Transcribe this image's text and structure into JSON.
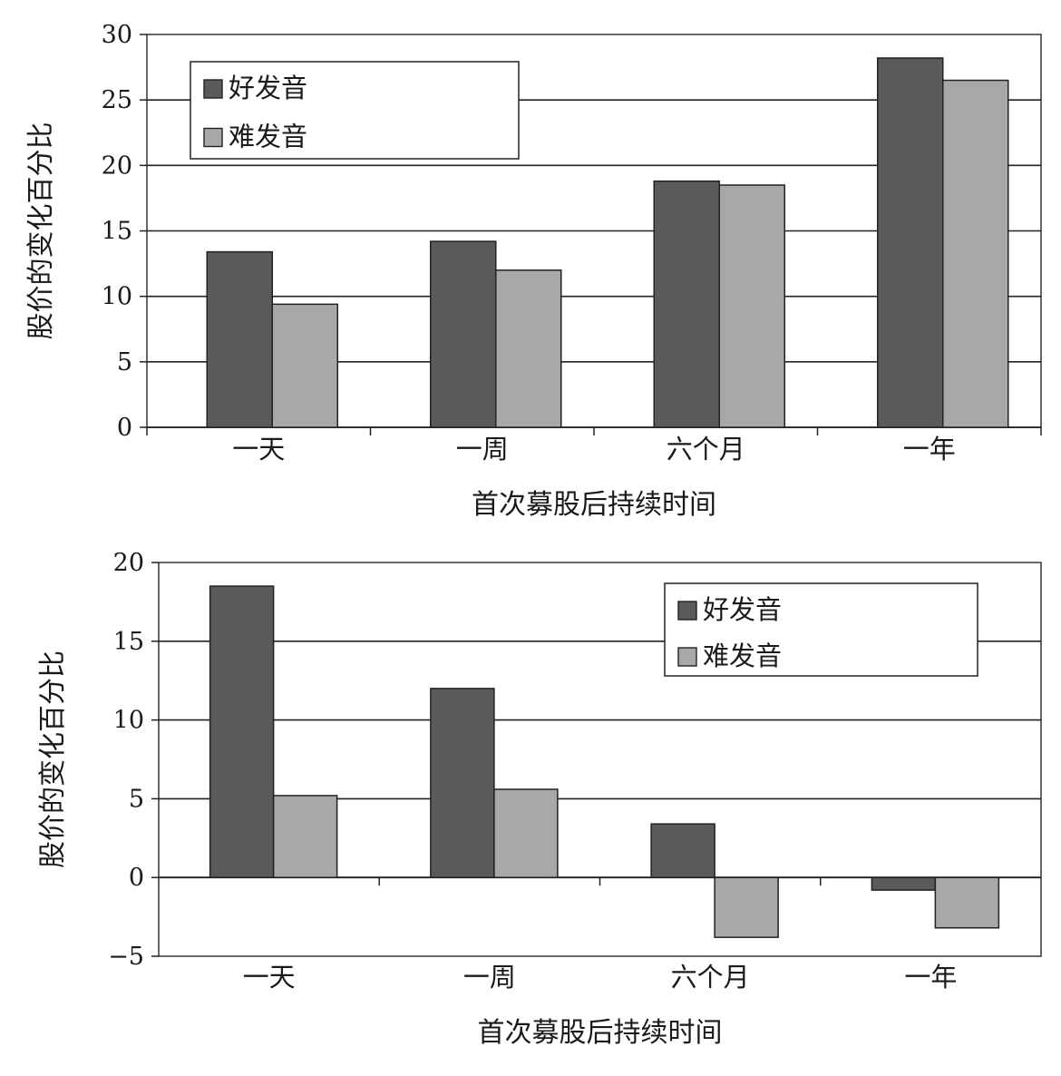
{
  "chart_data": [
    {
      "type": "bar",
      "categories": [
        "一天",
        "一周",
        "六个月",
        "一年"
      ],
      "series": [
        {
          "name": "好发音",
          "values": [
            13.4,
            14.2,
            18.8,
            28.2
          ]
        },
        {
          "name": "难发音",
          "values": [
            9.4,
            12.0,
            18.5,
            26.5
          ]
        }
      ],
      "title": "",
      "xlabel": "首次募股后持续时间",
      "ylabel": "股价的变化百分比",
      "ylim": [
        0,
        30
      ],
      "yticks": [
        0,
        5,
        10,
        15,
        20,
        25,
        30
      ],
      "grid": true,
      "legend": "top-left",
      "colors": [
        "#5a5a5a",
        "#a8a8a8"
      ]
    },
    {
      "type": "bar",
      "categories": [
        "一天",
        "一周",
        "六个月",
        "一年"
      ],
      "series": [
        {
          "name": "好发音",
          "values": [
            18.5,
            12.0,
            3.4,
            -0.8
          ]
        },
        {
          "name": "难发音",
          "values": [
            5.2,
            5.6,
            -3.8,
            -3.2
          ]
        }
      ],
      "title": "",
      "xlabel": "首次募股后持续时间",
      "ylabel": "股价的变化百分比",
      "ylim": [
        -5,
        20
      ],
      "yticks": [
        -5,
        0,
        5,
        10,
        15,
        20
      ],
      "grid": true,
      "legend": "top-right",
      "colors": [
        "#5a5a5a",
        "#a8a8a8"
      ]
    }
  ]
}
